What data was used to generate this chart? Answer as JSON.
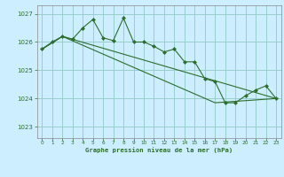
{
  "title": "Graphe pression niveau de la mer (hPa)",
  "background_color": "#cceeff",
  "grid_color": "#99cccc",
  "line_color": "#2d6e2d",
  "xlim": [
    -0.5,
    23.5
  ],
  "ylim": [
    1022.6,
    1027.3
  ],
  "yticks": [
    1023,
    1024,
    1025,
    1026,
    1027
  ],
  "xticks": [
    0,
    1,
    2,
    3,
    4,
    5,
    6,
    7,
    8,
    9,
    10,
    11,
    12,
    13,
    14,
    15,
    16,
    17,
    18,
    19,
    20,
    21,
    22,
    23
  ],
  "series": [
    {
      "x": [
        0,
        1,
        2,
        3,
        4,
        5,
        6,
        7,
        8,
        9,
        10,
        11,
        12,
        13,
        14,
        15,
        16,
        17,
        18,
        19,
        20,
        21,
        22,
        23
      ],
      "y": [
        1025.75,
        1026.0,
        1026.2,
        1026.1,
        1026.5,
        1026.8,
        1026.15,
        1026.05,
        1026.85,
        1026.0,
        1026.0,
        1025.85,
        1025.65,
        1025.75,
        1025.3,
        1025.3,
        1024.7,
        1024.6,
        1023.85,
        1023.85,
        1024.1,
        1024.3,
        1024.45,
        1024.0
      ],
      "marker": "D",
      "markersize": 2.0,
      "linewidth": 0.8
    },
    {
      "x": [
        0,
        2,
        23
      ],
      "y": [
        1025.75,
        1026.2,
        1024.0
      ],
      "marker": null,
      "markersize": 0,
      "linewidth": 0.8
    },
    {
      "x": [
        0,
        2,
        17,
        23
      ],
      "y": [
        1025.75,
        1026.2,
        1023.85,
        1024.0
      ],
      "marker": null,
      "markersize": 0,
      "linewidth": 0.8
    }
  ]
}
